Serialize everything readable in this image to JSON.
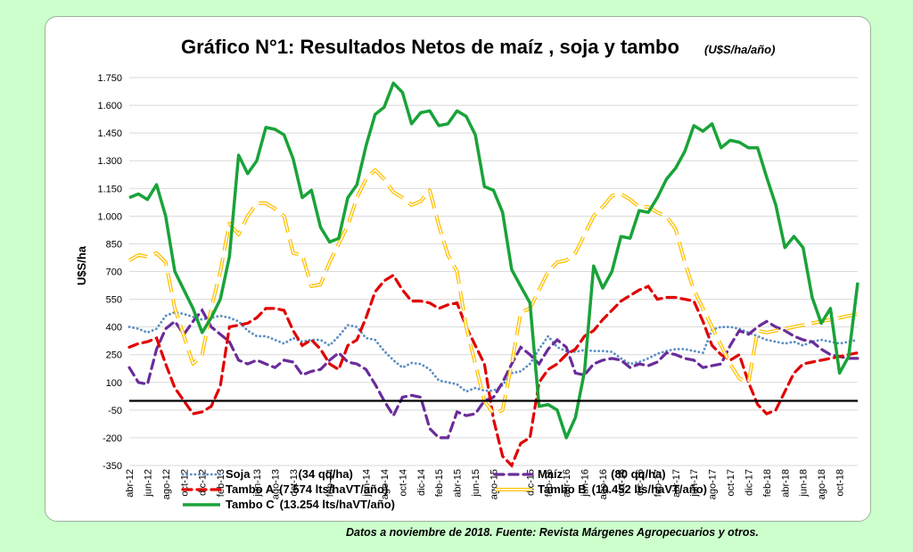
{
  "chart_data": {
    "type": "line",
    "title": "Gráfico N°1: Resultados Netos de maíz , soja y tambo",
    "title_unit": "(U$S/ha/año)",
    "ylabel": "U$S/ha",
    "xlabel": "",
    "ylim": [
      -350,
      1750
    ],
    "y_ticks": [
      -350,
      -200,
      -50,
      100,
      250,
      400,
      550,
      700,
      850,
      1000,
      1150,
      1300,
      1450,
      1600,
      1750
    ],
    "y_tick_labels": [
      "-350",
      "-200",
      "-50",
      "100",
      "250",
      "400",
      "550",
      "700",
      "850",
      "1.000",
      "1.150",
      "1.300",
      "1.450",
      "1.600",
      "1.750"
    ],
    "x_tick_labels": [
      "abr-12",
      "jun-12",
      "ago-12",
      "oct-12",
      "dic-12",
      "feb-13",
      "jun-13",
      "ago-13",
      "oct-13",
      "feb-14",
      "jun-14",
      "ago-14",
      "oct-14",
      "dic-14",
      "feb-15",
      "abr-15",
      "jun-15",
      "ago-15",
      "dic-15",
      "feb-16",
      "abr-16",
      "jun-16",
      "ago-16",
      "oct-16",
      "dic-16",
      "feb-17",
      "abr-17",
      "jun-17",
      "ago-17",
      "oct-17",
      "dic-17",
      "feb-18",
      "abr-18",
      "jun-18",
      "ago-18",
      "oct-18"
    ],
    "x_tick_months": [
      0,
      2,
      4,
      6,
      8,
      10,
      14,
      16,
      18,
      22,
      26,
      28,
      30,
      32,
      34,
      36,
      38,
      40,
      44,
      46,
      48,
      50,
      52,
      54,
      56,
      58,
      60,
      62,
      64,
      66,
      68,
      70,
      72,
      74,
      76,
      78
    ],
    "x_months_total": 81,
    "reference_line": 0,
    "grid": true,
    "legend_placement": "bottom",
    "series": [
      {
        "name": "Soja",
        "detail": "(34 qq/ha)",
        "color": "#5b8ec4",
        "style": "dotted",
        "values": [
          400,
          390,
          370,
          390,
          460,
          480,
          470,
          455,
          440,
          450,
          460,
          450,
          430,
          380,
          350,
          350,
          330,
          310,
          340,
          320,
          330,
          330,
          300,
          350,
          410,
          400,
          340,
          330,
          270,
          220,
          180,
          205,
          200,
          170,
          110,
          100,
          90,
          50,
          70,
          55,
          55,
          85,
          150,
          160,
          200,
          280,
          350,
          290,
          270,
          265,
          275,
          270,
          270,
          265,
          230,
          200,
          210,
          230,
          255,
          270,
          280,
          280,
          270,
          260,
          385,
          400,
          400,
          390,
          370,
          350,
          330,
          320,
          310,
          320,
          300,
          320,
          330,
          320,
          310,
          320,
          330
        ]
      },
      {
        "name": "Maíz",
        "detail": "(80 qq/ha)",
        "color": "#6a2c9a",
        "style": "dashed",
        "values": [
          180,
          100,
          90,
          280,
          390,
          430,
          360,
          430,
          490,
          400,
          360,
          320,
          220,
          200,
          220,
          200,
          180,
          220,
          210,
          140,
          160,
          170,
          220,
          260,
          210,
          200,
          170,
          90,
          0,
          -80,
          20,
          30,
          20,
          -150,
          -200,
          -200,
          -60,
          -80,
          -70,
          0,
          20,
          100,
          200,
          290,
          250,
          200,
          280,
          330,
          290,
          150,
          140,
          200,
          220,
          230,
          220,
          180,
          200,
          190,
          210,
          260,
          250,
          230,
          220,
          180,
          190,
          200,
          300,
          380,
          360,
          400,
          430,
          400,
          380,
          350,
          330,
          320,
          280,
          250,
          240,
          230,
          230
        ]
      },
      {
        "name": "Tambo  A",
        "detail": "(7.574 lts/haVT/año)",
        "color": "#e00000",
        "style": "dashed",
        "values": [
          290,
          310,
          320,
          340,
          200,
          70,
          0,
          -70,
          -60,
          -30,
          80,
          400,
          410,
          420,
          450,
          500,
          500,
          490,
          380,
          300,
          330,
          280,
          200,
          170,
          300,
          330,
          450,
          590,
          650,
          680,
          600,
          540,
          540,
          530,
          500,
          520,
          530,
          400,
          300,
          200,
          -100,
          -300,
          -350,
          -230,
          -200,
          100,
          170,
          200,
          250,
          280,
          350,
          380,
          440,
          490,
          540,
          570,
          600,
          620,
          550,
          560,
          560,
          550,
          540,
          430,
          300,
          250,
          220,
          250,
          100,
          -20,
          -70,
          -50,
          50,
          150,
          200,
          210,
          220,
          230,
          240,
          250,
          260
        ]
      },
      {
        "name": "Tambo B",
        "detail": "(10.452 lts/haVT/año)",
        "color": "#ffc000",
        "style": "double",
        "values": [
          760,
          790,
          780,
          800,
          750,
          500,
          350,
          200,
          250,
          500,
          700,
          960,
          900,
          1000,
          1070,
          1070,
          1040,
          1000,
          800,
          790,
          620,
          630,
          750,
          850,
          950,
          1100,
          1200,
          1250,
          1200,
          1130,
          1100,
          1060,
          1080,
          1140,
          950,
          790,
          700,
          400,
          200,
          0,
          -70,
          -50,
          200,
          480,
          500,
          600,
          700,
          750,
          760,
          800,
          900,
          1000,
          1050,
          1110,
          1120,
          1090,
          1050,
          1050,
          1020,
          1000,
          930,
          750,
          600,
          500,
          400,
          300,
          200,
          120,
          100,
          380,
          370,
          380,
          390,
          400,
          410,
          420,
          430,
          440,
          450,
          460,
          470
        ]
      },
      {
        "name": "Tambo C",
        "detail": "(13.254 lts/haVT/año)",
        "color": "#19a339",
        "style": "solid",
        "values": [
          1100,
          1120,
          1090,
          1170,
          1000,
          700,
          600,
          500,
          370,
          450,
          550,
          780,
          1330,
          1230,
          1300,
          1480,
          1470,
          1440,
          1310,
          1100,
          1140,
          940,
          860,
          880,
          1100,
          1170,
          1380,
          1550,
          1590,
          1720,
          1670,
          1500,
          1560,
          1570,
          1490,
          1500,
          1570,
          1540,
          1440,
          1160,
          1140,
          1020,
          710,
          620,
          530,
          -30,
          -20,
          -50,
          -200,
          -90,
          160,
          730,
          610,
          700,
          890,
          880,
          1030,
          1020,
          1100,
          1200,
          1260,
          1350,
          1490,
          1460,
          1500,
          1370,
          1410,
          1400,
          1370,
          1370,
          1210,
          1060,
          830,
          890,
          830,
          560,
          420,
          500,
          150,
          240,
          640
        ]
      }
    ]
  },
  "footnote": "Datos a noviembre de 2018. Fuente: Revista Márgenes Agropecuarios y otros.",
  "colors": {
    "page_background": "#ccffcc",
    "panel_background": "#ffffff",
    "grid": "#d9d9d9",
    "zero_line": "#000000"
  }
}
